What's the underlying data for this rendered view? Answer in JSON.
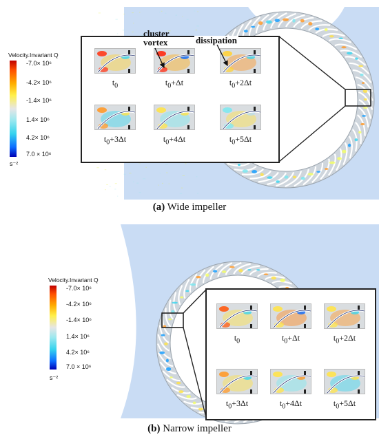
{
  "panels": [
    {
      "caption_letter": "(a)",
      "caption_text": " Wide impeller",
      "legend": {
        "title": "Velocity.Invariant Q",
        "ticks": [
          "-7.0× 10⁶",
          "-4.2× 10⁶",
          "-1.4× 10⁶",
          "1.4× 10⁶",
          "4.2× 10⁶",
          "7.0 × 10⁶"
        ],
        "unit": "s⁻²"
      },
      "frames": [
        {
          "base": "t",
          "sub": "0",
          "suffix": ""
        },
        {
          "base": "t",
          "sub": "0",
          "suffix": "+Δt"
        },
        {
          "base": "t",
          "sub": "0",
          "suffix": "+2Δt"
        },
        {
          "base": "t",
          "sub": "0",
          "suffix": "+3Δt"
        },
        {
          "base": "t",
          "sub": "0",
          "suffix": "+4Δt"
        },
        {
          "base": "t",
          "sub": "0",
          "suffix": "+5Δt"
        }
      ],
      "annotations": {
        "cluster_vortex_line1": "cluster",
        "cluster_vortex_line2": "vortex",
        "dissipation": "dissipation"
      }
    },
    {
      "caption_letter": "(b)",
      "caption_text": " Narrow impeller",
      "legend": {
        "title": "Velocity.Invariant Q",
        "ticks": [
          "-7.0× 10⁶",
          "-4.2× 10⁶",
          "-1.4× 10⁶",
          "1.4× 10⁶",
          "4.2× 10⁶",
          "7.0 × 10⁶"
        ],
        "unit": "s⁻²"
      },
      "frames": [
        {
          "base": "t",
          "sub": "0",
          "suffix": ""
        },
        {
          "base": "t",
          "sub": "0",
          "suffix": "+Δt"
        },
        {
          "base": "t",
          "sub": "0",
          "suffix": "+2Δt"
        },
        {
          "base": "t",
          "sub": "0",
          "suffix": "+3Δt"
        },
        {
          "base": "t",
          "sub": "0",
          "suffix": "+4Δt"
        },
        {
          "base": "t",
          "sub": "0",
          "suffix": "+5Δt"
        }
      ]
    }
  ],
  "colors": {
    "volute": "#c9dcf4",
    "ring": "#cfd6dd",
    "blade": "#ffffff",
    "inset_border": "#222222"
  }
}
